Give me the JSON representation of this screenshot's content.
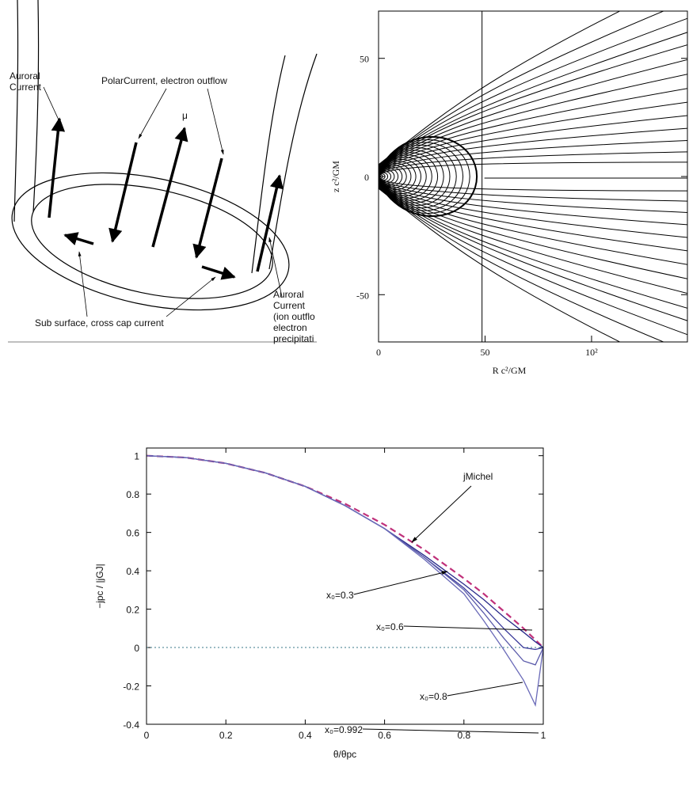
{
  "diagram": {
    "labels": {
      "auroral_left": [
        "Auroral",
        "Current"
      ],
      "polar": "PolarCurrent, electron outflow",
      "mu": "μ",
      "sub_surface": "Sub surface, cross cap current",
      "auroral_right": [
        "Auroral",
        "Current",
        "(ion outflo",
        "electron",
        "precipitati"
      ]
    }
  },
  "chart_data": [
    {
      "type": "field-lines",
      "xlabel": "R c²/GM",
      "ylabel": "z c²/GM",
      "xlim": [
        0,
        145
      ],
      "ylim": [
        -70,
        70
      ],
      "xticks": [
        0,
        50,
        {
          "value": 100,
          "label": "10²"
        }
      ],
      "yticks": [
        -50,
        0,
        50
      ]
    },
    {
      "type": "line",
      "xlabel": "θ/θpc",
      "ylabel": "−jpc / |jGJ|",
      "x": [
        0,
        0.1,
        0.2,
        0.3,
        0.4,
        0.5,
        0.6,
        0.7,
        0.8,
        0.85,
        0.9,
        0.95,
        0.98,
        1
      ],
      "series": [
        {
          "name": "jMichel",
          "color": "#c0307a",
          "dashed": true,
          "values": [
            1,
            0.99,
            0.96,
            0.91,
            0.84,
            0.75,
            0.64,
            0.51,
            0.36,
            0.28,
            0.19,
            0.1,
            0.04,
            0
          ]
        },
        {
          "name": "x₀=0.3",
          "color": "#2a2a8a",
          "values": [
            1,
            0.99,
            0.96,
            0.91,
            0.84,
            0.74,
            0.62,
            0.48,
            0.33,
            0.25,
            0.16,
            0.08,
            0.03,
            0
          ]
        },
        {
          "name": "x₀=0.6",
          "color": "#3a3a9a",
          "values": [
            1,
            0.99,
            0.96,
            0.91,
            0.84,
            0.74,
            0.62,
            0.47,
            0.31,
            0.21,
            0.1,
            0.0,
            -0.01,
            0
          ]
        },
        {
          "name": "x₀=0.8",
          "color": "#5a5aaa",
          "values": [
            1,
            0.99,
            0.96,
            0.91,
            0.84,
            0.74,
            0.62,
            0.47,
            0.3,
            0.18,
            0.05,
            -0.07,
            -0.09,
            0
          ]
        },
        {
          "name": "x₀=0.992",
          "color": "#6a6ab8",
          "values": [
            1,
            0.99,
            0.96,
            0.91,
            0.84,
            0.74,
            0.62,
            0.46,
            0.28,
            0.14,
            -0.01,
            -0.17,
            -0.3,
            0
          ]
        }
      ],
      "zero_line": true,
      "xlim": [
        0,
        1
      ],
      "ylim": [
        -0.4,
        1.04
      ],
      "xticks": [
        0,
        0.2,
        0.4,
        0.6,
        0.8,
        1
      ],
      "yticks": [
        -0.4,
        -0.2,
        0,
        0.2,
        0.4,
        0.6,
        0.8,
        1
      ]
    }
  ]
}
